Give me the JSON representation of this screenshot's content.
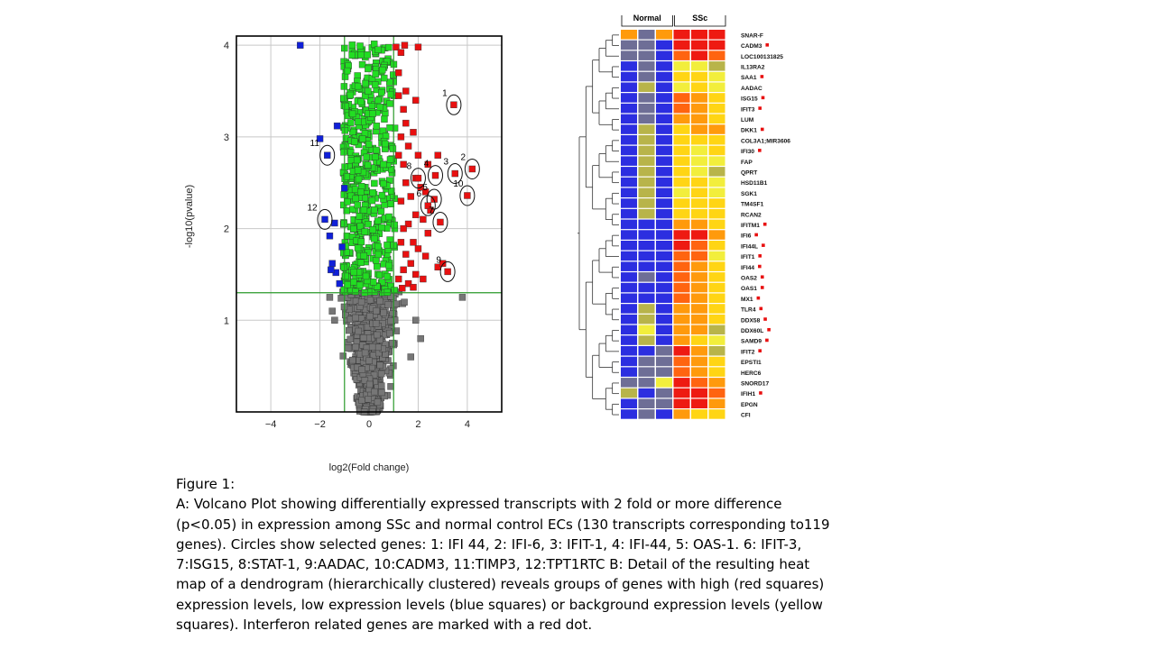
{
  "figure": {
    "caption_title": "Figure 1:",
    "caption_lines": [
      "A: Volcano Plot showing differentially expressed transcripts with 2 fold or more difference",
      "(p<0.05) in expression among SSc and normal control ECs (130 transcripts corresponding to119",
      "genes). Circles show selected genes: 1: IFI 44, 2: IFI-6, 3: IFIT-1, 4: IFI-44, 5: OAS-1. 6: IFIT-3,",
      "7:ISG15, 8:STAT-1, 9:AADAC, 10:CADM3, 11:TIMP3, 12:TPT1RTC  B: Detail of the resulting heat",
      "map of a dendrogram (hierarchically clustered)  reveals groups of genes with high (red squares)",
      "expression levels, low expression levels (blue squares) or background expression levels (yellow",
      "squares). Interferon related genes are marked with a red dot."
    ]
  },
  "chart_data": [
    {
      "type": "scatter",
      "title": "",
      "xlabel": "log2(Fold change)",
      "ylabel": "-log10(pvalue)",
      "xlim": [
        -5.4,
        5.4
      ],
      "ylim": [
        0,
        4.1
      ],
      "xticks": [
        -4,
        -2,
        0,
        2,
        4
      ],
      "xtick_labels": [
        "−4",
        "−2",
        "0",
        "2",
        "4"
      ],
      "yticks": [
        1,
        2,
        3,
        4
      ],
      "ytick_labels": [
        "1",
        "2",
        "3",
        "4"
      ],
      "grid": true,
      "thresholds": {
        "x": [
          -1,
          1
        ],
        "y": 1.3
      },
      "colors": {
        "up": "#e81010",
        "down": "#1020d8",
        "significant": "#22dd22",
        "background": "#767676",
        "threshold": "#2a9a2a",
        "grid": "#c8c8c8"
      },
      "highlighted_points": [
        {
          "label": "1",
          "x": 3.45,
          "y": 3.35
        },
        {
          "label": "2",
          "x": 4.2,
          "y": 2.65
        },
        {
          "label": "3",
          "x": 3.5,
          "y": 2.6
        },
        {
          "label": "4",
          "x": 2.7,
          "y": 2.58
        },
        {
          "label": "5",
          "x": 2.65,
          "y": 2.32
        },
        {
          "label": "6",
          "x": 2.4,
          "y": 2.25
        },
        {
          "label": "7",
          "x": 2.9,
          "y": 2.07
        },
        {
          "label": "8",
          "x": 2.0,
          "y": 2.55
        },
        {
          "label": "9",
          "x": 3.2,
          "y": 1.53
        },
        {
          "label": "10",
          "x": 4.0,
          "y": 2.36
        },
        {
          "label": "11",
          "x": -1.7,
          "y": 2.8
        },
        {
          "label": "12",
          "x": -1.8,
          "y": 2.1
        }
      ],
      "down_points": [
        [
          -2.8,
          4.0
        ],
        [
          -2.0,
          2.98
        ],
        [
          -1.3,
          3.12
        ],
        [
          -1.0,
          2.44
        ],
        [
          -1.4,
          2.06
        ],
        [
          -1.6,
          1.92
        ],
        [
          -1.1,
          1.8
        ],
        [
          -1.5,
          1.62
        ],
        [
          -1.35,
          1.52
        ],
        [
          -1.55,
          1.55
        ],
        [
          -1.2,
          1.4
        ]
      ],
      "up_points": [
        [
          1.1,
          3.98
        ],
        [
          1.3,
          3.92
        ],
        [
          1.45,
          4.0
        ],
        [
          1.2,
          3.7
        ],
        [
          2.0,
          3.98
        ],
        [
          1.5,
          3.5
        ],
        [
          1.2,
          3.45
        ],
        [
          1.4,
          3.3
        ],
        [
          1.9,
          3.4
        ],
        [
          1.5,
          3.15
        ],
        [
          1.8,
          3.05
        ],
        [
          1.3,
          3.0
        ],
        [
          1.6,
          2.9
        ],
        [
          2.0,
          2.8
        ],
        [
          1.2,
          2.8
        ],
        [
          2.4,
          2.7
        ],
        [
          2.8,
          2.8
        ],
        [
          1.4,
          2.7
        ],
        [
          1.9,
          2.55
        ],
        [
          1.5,
          2.5
        ],
        [
          2.1,
          2.45
        ],
        [
          2.3,
          2.4
        ],
        [
          1.7,
          2.35
        ],
        [
          2.5,
          2.2
        ],
        [
          1.3,
          2.3
        ],
        [
          1.9,
          2.15
        ],
        [
          2.2,
          2.1
        ],
        [
          1.6,
          2.05
        ],
        [
          1.4,
          2.0
        ],
        [
          2.4,
          1.95
        ],
        [
          1.8,
          1.85
        ],
        [
          1.3,
          1.85
        ],
        [
          2.0,
          1.78
        ],
        [
          1.5,
          1.72
        ],
        [
          2.3,
          1.7
        ],
        [
          1.7,
          1.62
        ],
        [
          2.8,
          1.58
        ],
        [
          1.4,
          1.55
        ],
        [
          1.9,
          1.5
        ],
        [
          1.2,
          1.45
        ],
        [
          1.6,
          1.4
        ],
        [
          2.2,
          1.45
        ],
        [
          1.35,
          1.35
        ],
        [
          1.8,
          1.36
        ],
        [
          3.0,
          1.62
        ]
      ],
      "extra_gray_points": [
        [
          3.8,
          1.25
        ],
        [
          1.9,
          1.0
        ],
        [
          2.1,
          0.8
        ],
        [
          -1.5,
          1.1
        ],
        [
          -1.4,
          1.0
        ],
        [
          1.7,
          0.6
        ],
        [
          -1.6,
          1.25
        ]
      ]
    },
    {
      "type": "heatmap",
      "column_groups": [
        {
          "label": "Normal",
          "columns": 3
        },
        {
          "label": "SSc",
          "columns": 3
        }
      ],
      "color_scale": {
        "1": "#2c2ee0",
        "2": "#6e6e96",
        "3": "#b8b44a",
        "4": "#f2ee3c",
        "5": "#ffd514",
        "6": "#ff9a0c",
        "7": "#ff6410",
        "8": "#ee1a12"
      },
      "rows": [
        {
          "gene": "SNAR-F",
          "interferon": false,
          "values": [
            6,
            2,
            6,
            8,
            8,
            8
          ]
        },
        {
          "gene": "CADM3",
          "interferon": true,
          "values": [
            2,
            2,
            1,
            8,
            8,
            8
          ]
        },
        {
          "gene": "LOC100131825",
          "interferon": false,
          "values": [
            2,
            2,
            1,
            7,
            8,
            7
          ]
        },
        {
          "gene": "IL13RA2",
          "interferon": false,
          "values": [
            1,
            2,
            1,
            4,
            4,
            3
          ]
        },
        {
          "gene": "SAA1",
          "interferon": true,
          "values": [
            1,
            2,
            1,
            5,
            5,
            4
          ]
        },
        {
          "gene": "AADAC",
          "interferon": false,
          "values": [
            1,
            3,
            1,
            4,
            5,
            4
          ]
        },
        {
          "gene": "ISG15",
          "interferon": true,
          "values": [
            1,
            2,
            1,
            7,
            6,
            5
          ]
        },
        {
          "gene": "IFIT3",
          "interferon": true,
          "values": [
            1,
            2,
            1,
            7,
            6,
            5
          ]
        },
        {
          "gene": "LUM",
          "interferon": false,
          "values": [
            1,
            2,
            1,
            6,
            6,
            5
          ]
        },
        {
          "gene": "DKK1",
          "interferon": true,
          "values": [
            1,
            3,
            1,
            5,
            6,
            6
          ]
        },
        {
          "gene": "COL3A1;MIR3606",
          "interferon": false,
          "values": [
            1,
            3,
            1,
            5,
            5,
            5
          ]
        },
        {
          "gene": "IFI30",
          "interferon": true,
          "values": [
            1,
            3,
            1,
            5,
            4,
            5
          ]
        },
        {
          "gene": "FAP",
          "interferon": false,
          "values": [
            1,
            3,
            1,
            5,
            4,
            4
          ]
        },
        {
          "gene": "QPRT",
          "interferon": false,
          "values": [
            1,
            3,
            1,
            5,
            4,
            3
          ]
        },
        {
          "gene": "HSD11B1",
          "interferon": false,
          "values": [
            1,
            3,
            1,
            5,
            5,
            4
          ]
        },
        {
          "gene": "SGK1",
          "interferon": false,
          "values": [
            1,
            3,
            1,
            4,
            5,
            4
          ]
        },
        {
          "gene": "TM4SF1",
          "interferon": false,
          "values": [
            1,
            3,
            1,
            5,
            5,
            5
          ]
        },
        {
          "gene": "RCAN2",
          "interferon": false,
          "values": [
            1,
            3,
            1,
            5,
            5,
            5
          ]
        },
        {
          "gene": "IFITM1",
          "interferon": true,
          "values": [
            1,
            1,
            1,
            6,
            6,
            5
          ]
        },
        {
          "gene": "IFI6",
          "interferon": true,
          "values": [
            1,
            1,
            1,
            8,
            8,
            6
          ]
        },
        {
          "gene": "IFI44L",
          "interferon": true,
          "values": [
            1,
            1,
            1,
            8,
            7,
            5
          ]
        },
        {
          "gene": "IFIT1",
          "interferon": true,
          "values": [
            1,
            1,
            1,
            7,
            7,
            4
          ]
        },
        {
          "gene": "IFI44",
          "interferon": true,
          "values": [
            1,
            1,
            1,
            7,
            6,
            5
          ]
        },
        {
          "gene": "OAS2",
          "interferon": true,
          "values": [
            1,
            2,
            1,
            7,
            6,
            5
          ]
        },
        {
          "gene": "OAS1",
          "interferon": true,
          "values": [
            1,
            1,
            1,
            7,
            6,
            5
          ]
        },
        {
          "gene": "MX1",
          "interferon": true,
          "values": [
            1,
            1,
            1,
            7,
            6,
            5
          ]
        },
        {
          "gene": "TLR4",
          "interferon": true,
          "values": [
            1,
            3,
            1,
            6,
            6,
            5
          ]
        },
        {
          "gene": "DDX58",
          "interferon": true,
          "values": [
            1,
            3,
            1,
            6,
            6,
            5
          ]
        },
        {
          "gene": "DDX60L",
          "interferon": true,
          "values": [
            1,
            4,
            1,
            6,
            6,
            3
          ]
        },
        {
          "gene": "SAMD9",
          "interferon": true,
          "values": [
            1,
            3,
            1,
            6,
            5,
            4
          ]
        },
        {
          "gene": "IFIT2",
          "interferon": true,
          "values": [
            1,
            1,
            2,
            8,
            6,
            3
          ]
        },
        {
          "gene": "EPSTI1",
          "interferon": false,
          "values": [
            1,
            2,
            2,
            7,
            6,
            5
          ]
        },
        {
          "gene": "HERC6",
          "interferon": false,
          "values": [
            1,
            2,
            2,
            7,
            6,
            5
          ]
        },
        {
          "gene": "SNORD17",
          "interferon": false,
          "values": [
            2,
            2,
            4,
            8,
            7,
            6
          ]
        },
        {
          "gene": "IFIH1",
          "interferon": true,
          "values": [
            3,
            1,
            2,
            8,
            8,
            7
          ]
        },
        {
          "gene": "EPGN",
          "interferon": false,
          "values": [
            1,
            2,
            2,
            8,
            8,
            6
          ]
        },
        {
          "gene": "CFI",
          "interferon": false,
          "values": [
            1,
            2,
            1,
            6,
            5,
            5
          ]
        }
      ]
    }
  ]
}
